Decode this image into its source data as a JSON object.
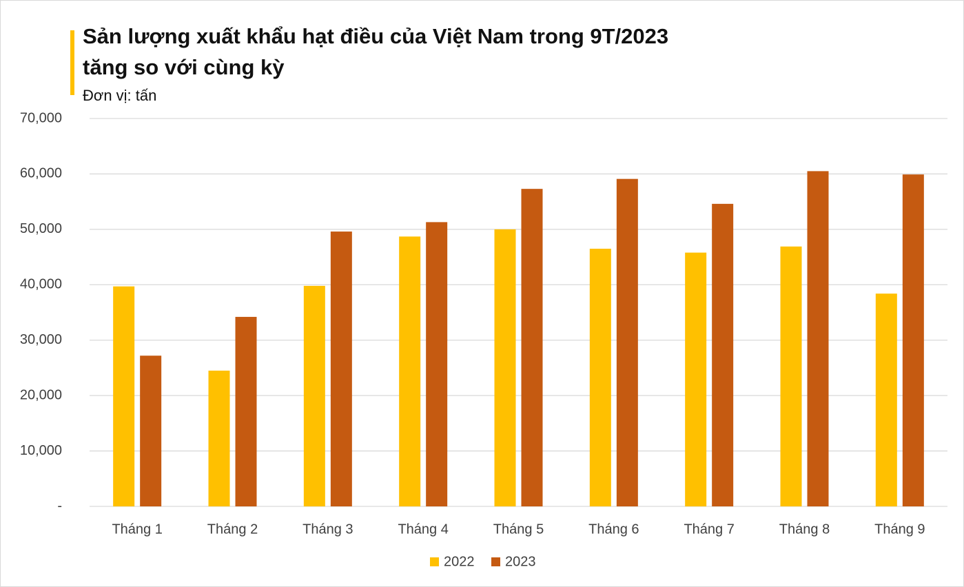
{
  "chart_data": {
    "type": "bar",
    "title": [
      "Sản lượng xuất khẩu hạt điều của Việt Nam trong 9T/2023",
      "tăng so với cùng kỳ"
    ],
    "subtitle": "Đơn vị: tấn",
    "categories": [
      "Tháng 1",
      "Tháng 2",
      "Tháng 3",
      "Tháng 4",
      "Tháng 5",
      "Tháng 6",
      "Tháng 7",
      "Tháng 8",
      "Tháng 9"
    ],
    "series": [
      {
        "name": "2022",
        "color": "#FFC000",
        "values": [
          39700,
          24500,
          39800,
          48700,
          50000,
          46500,
          45800,
          46900,
          38400
        ]
      },
      {
        "name": "2023",
        "color": "#C55A11",
        "values": [
          27200,
          34200,
          49600,
          51300,
          57300,
          59100,
          54600,
          60500,
          59900
        ]
      }
    ],
    "ylim": [
      0,
      70000
    ],
    "yticks": [
      {
        "value": 0,
        "label": "-"
      },
      {
        "value": 10000,
        "label": "10,000"
      },
      {
        "value": 20000,
        "label": "20,000"
      },
      {
        "value": 30000,
        "label": "30,000"
      },
      {
        "value": 40000,
        "label": "40,000"
      },
      {
        "value": 50000,
        "label": "50,000"
      },
      {
        "value": 60000,
        "label": "60,000"
      },
      {
        "value": 70000,
        "label": "70,000"
      }
    ],
    "grid": true,
    "legend": "bottom"
  }
}
